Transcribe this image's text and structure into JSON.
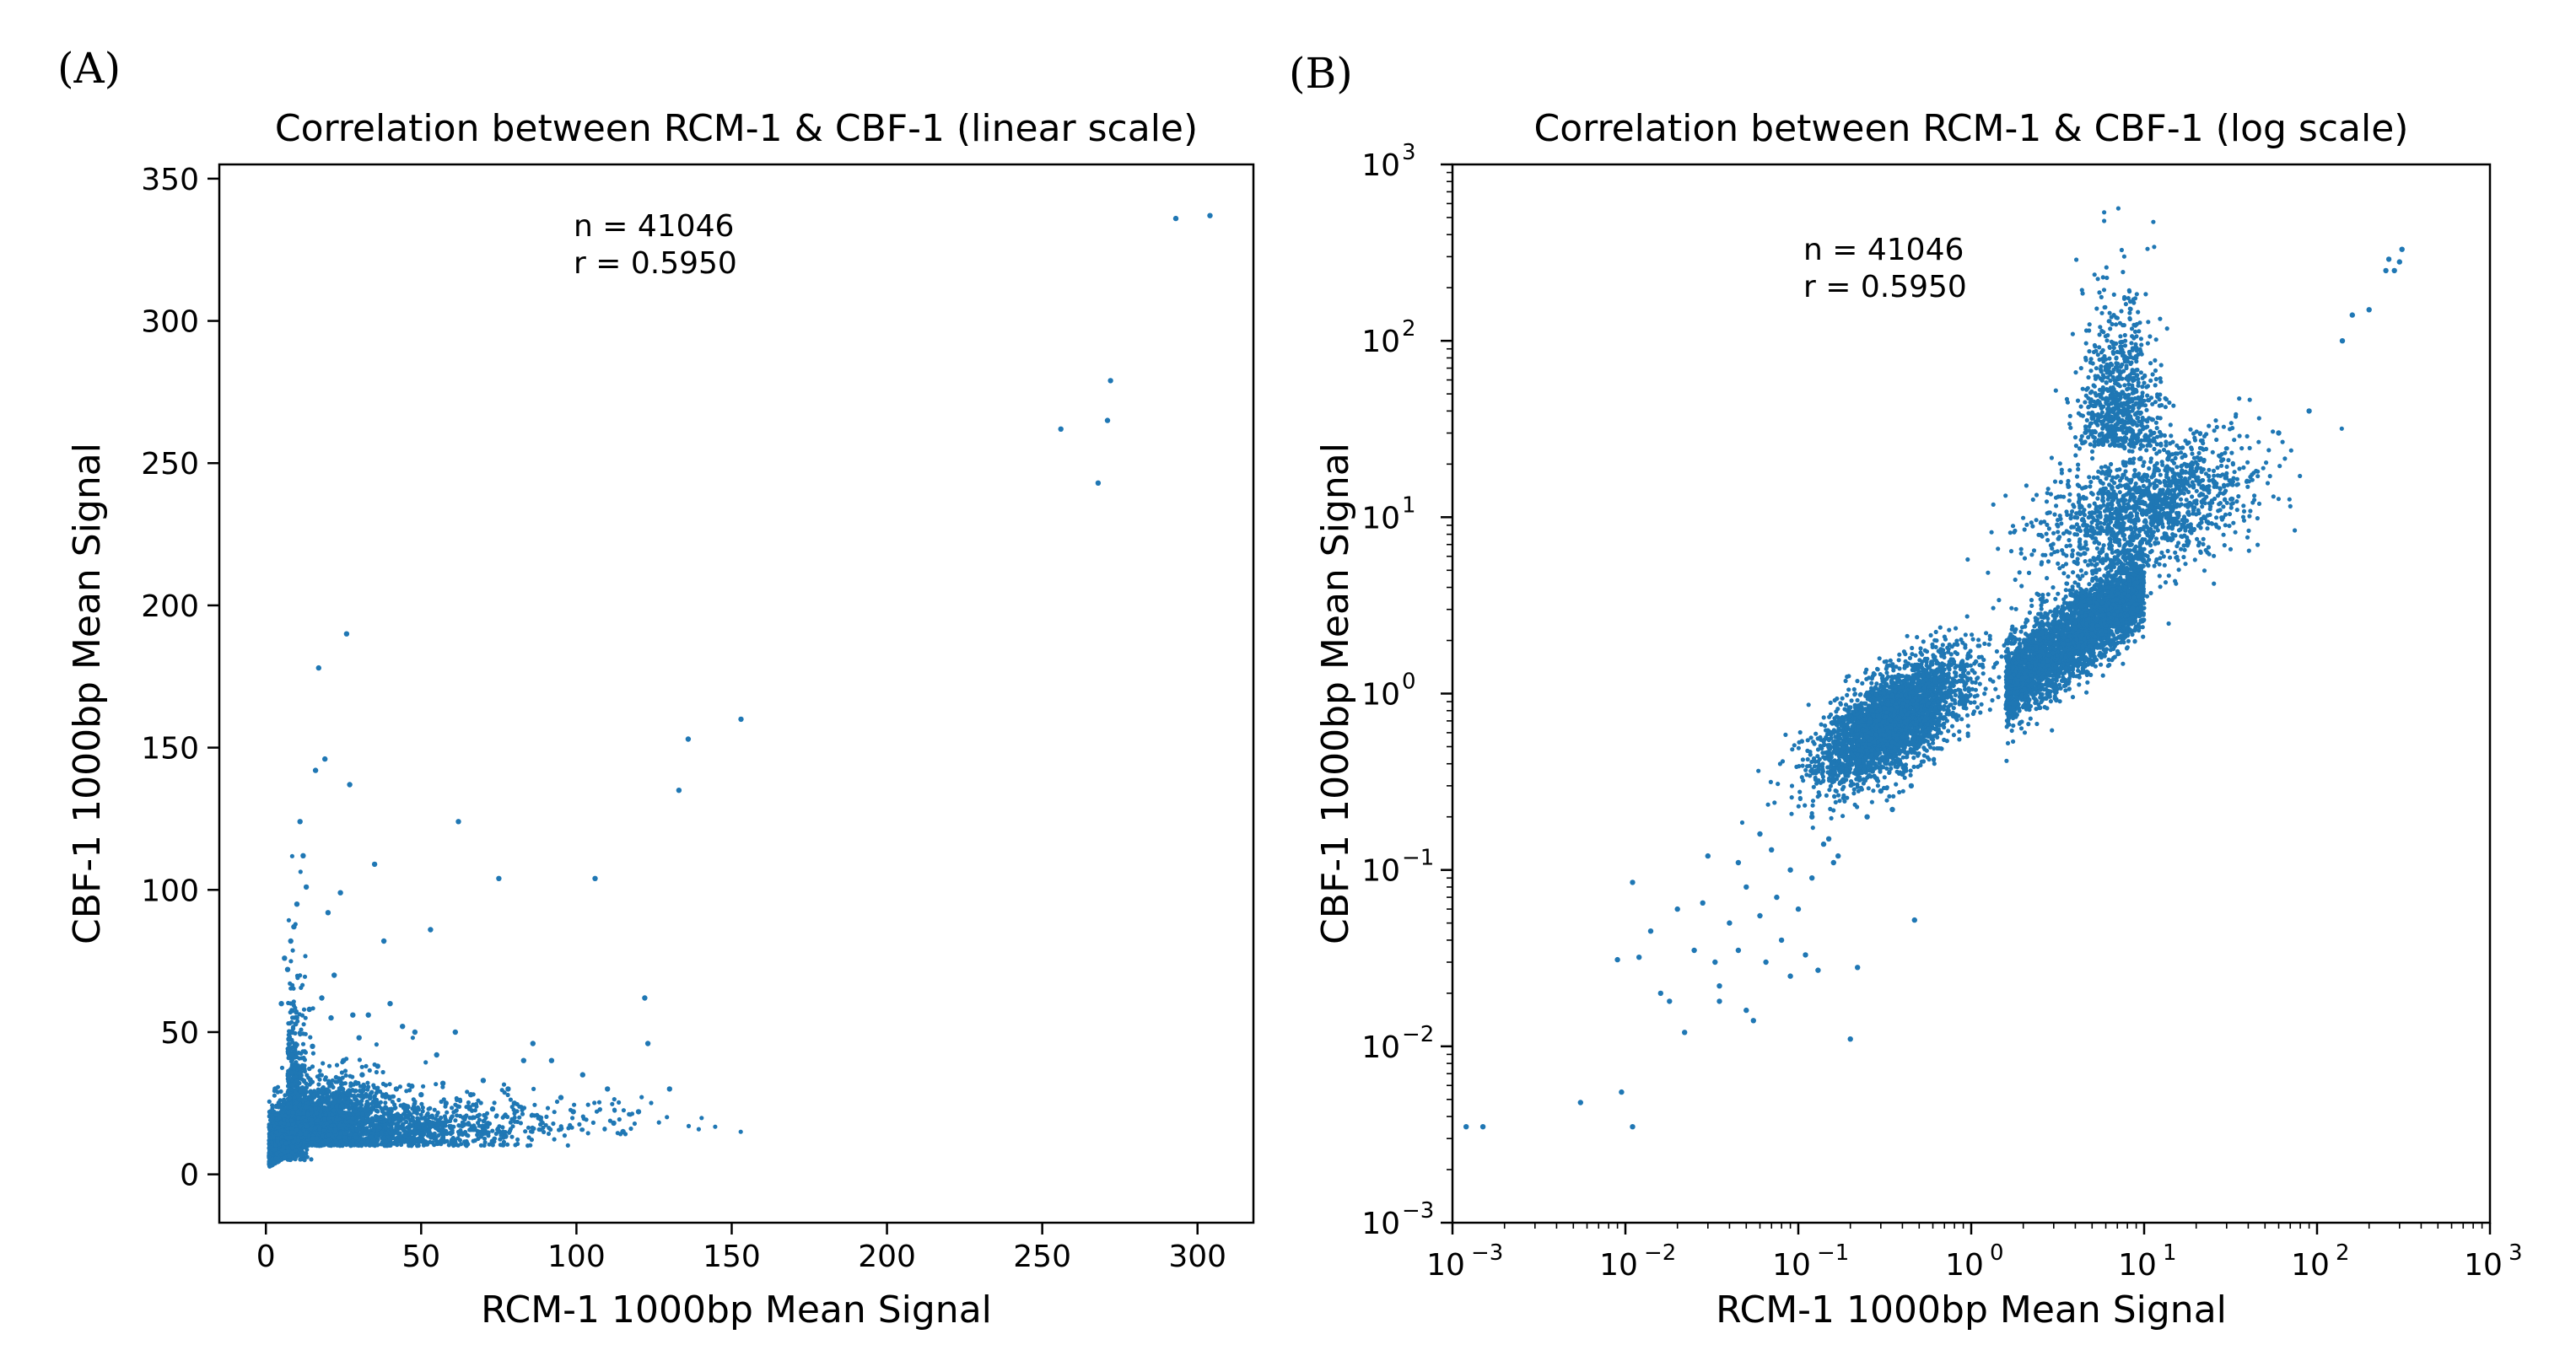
{
  "panels": {
    "a": {
      "letter": "(A)"
    },
    "b": {
      "letter": "(B)"
    }
  },
  "chart_data": [
    {
      "type": "scatter",
      "title": "Correlation between RCM-1 & CBF-1 (linear scale)",
      "xlabel": "RCM-1 1000bp Mean Signal",
      "ylabel": "CBF-1 1000bp Mean Signal",
      "xlim": [
        -15,
        318
      ],
      "ylim": [
        -17,
        355
      ],
      "xticks": [
        0,
        50,
        100,
        150,
        200,
        250,
        300
      ],
      "yticks": [
        0,
        50,
        100,
        150,
        200,
        250,
        300,
        350
      ],
      "xtick_labels": [
        "0",
        "50",
        "100",
        "150",
        "200",
        "250",
        "300"
      ],
      "ytick_labels": [
        "0",
        "50",
        "100",
        "150",
        "200",
        "250",
        "300",
        "350"
      ],
      "scale": "linear",
      "color": "#1f77b4",
      "annotation": [
        "n = 41046",
        "r = 0.5950"
      ],
      "series": [
        {
          "x": [
            293,
            304,
            272,
            271,
            256,
            268,
            153,
            136,
            133,
            122,
            106,
            75,
            62,
            26,
            27,
            17,
            19,
            16,
            13,
            11,
            12,
            10,
            9,
            8,
            20,
            24,
            35,
            38,
            22,
            28,
            53,
            61,
            83,
            86,
            92,
            95,
            99,
            102,
            110,
            112,
            115,
            120,
            123,
            130,
            3,
            5,
            6,
            7,
            14,
            15,
            18,
            21,
            25,
            30,
            31,
            33,
            40,
            42,
            45,
            48,
            55,
            58,
            66,
            70,
            73,
            78,
            80,
            88,
            50,
            57,
            64,
            36,
            44,
            47
          ],
          "y": [
            336,
            337,
            279,
            265,
            262,
            243,
            160,
            153,
            135,
            62,
            104,
            104,
            124,
            190,
            137,
            178,
            146,
            142,
            101,
            124,
            112,
            95,
            87,
            82,
            92,
            99,
            109,
            82,
            70,
            56,
            86,
            50,
            40,
            46,
            40,
            27,
            22,
            35,
            30,
            18,
            15,
            22,
            46,
            30,
            30,
            60,
            76,
            72,
            58,
            45,
            62,
            55,
            40,
            48,
            35,
            56,
            60,
            30,
            24,
            50,
            42,
            25,
            28,
            33,
            23,
            30,
            25,
            20,
            28,
            32,
            20,
            38,
            52,
            31
          ]
        }
      ]
    },
    {
      "type": "scatter",
      "title": "Correlation between RCM-1 & CBF-1 (log scale)",
      "xlabel": "RCM-1 1000bp Mean Signal",
      "ylabel": "CBF-1 1000bp Mean Signal",
      "xlim": [
        0.001,
        1000
      ],
      "ylim": [
        0.001,
        1000
      ],
      "scale": "log",
      "xtick_labels": [
        [
          "10",
          "−3"
        ],
        [
          "10",
          "−2"
        ],
        [
          "10",
          "−1"
        ],
        [
          "10",
          "0"
        ],
        [
          "10",
          "1"
        ],
        [
          "10",
          "2"
        ],
        [
          "10",
          "3"
        ]
      ],
      "ytick_labels": [
        [
          "10",
          "−3"
        ],
        [
          "10",
          "−2"
        ],
        [
          "10",
          "−1"
        ],
        [
          "10",
          "0"
        ],
        [
          "10",
          "1"
        ],
        [
          "10",
          "2"
        ],
        [
          "10",
          "3"
        ]
      ],
      "color": "#1f77b4",
      "annotation": [
        "n = 41046",
        "r = 0.5950"
      ],
      "series": [
        {
          "x": [
            0.0012,
            0.0015,
            0.0055,
            0.0095,
            0.011,
            0.009,
            0.011,
            0.012,
            0.014,
            0.016,
            0.018,
            0.02,
            0.022,
            0.025,
            0.03,
            0.033,
            0.035,
            0.04,
            0.045,
            0.05,
            0.055,
            0.06,
            0.065,
            0.07,
            0.08,
            0.09,
            0.1,
            0.11,
            0.12,
            0.13,
            0.15,
            0.17,
            0.2,
            0.22,
            0.25,
            0.3,
            0.35,
            0.4,
            0.45,
            0.47,
            0.05,
            0.035,
            0.028,
            0.045,
            0.06,
            0.075,
            0.09,
            0.12,
            0.14,
            0.16,
            280,
            300,
            310,
            250,
            200,
            160,
            140,
            260,
            90,
            60
          ],
          "y": [
            0.0035,
            0.0035,
            0.0048,
            0.0055,
            0.0035,
            0.031,
            0.085,
            0.032,
            0.045,
            0.02,
            0.018,
            0.06,
            0.012,
            0.035,
            0.12,
            0.03,
            0.018,
            0.05,
            0.035,
            0.08,
            0.014,
            0.055,
            0.03,
            0.13,
            0.04,
            0.1,
            0.06,
            0.033,
            0.2,
            0.027,
            0.15,
            0.12,
            0.011,
            0.028,
            0.2,
            0.28,
            0.22,
            0.35,
            0.3,
            0.052,
            0.016,
            0.022,
            0.065,
            0.11,
            0.16,
            0.07,
            0.025,
            0.09,
            0.14,
            0.11,
            250,
            280,
            330,
            250,
            150,
            140,
            100,
            290,
            40,
            30
          ]
        }
      ]
    }
  ]
}
